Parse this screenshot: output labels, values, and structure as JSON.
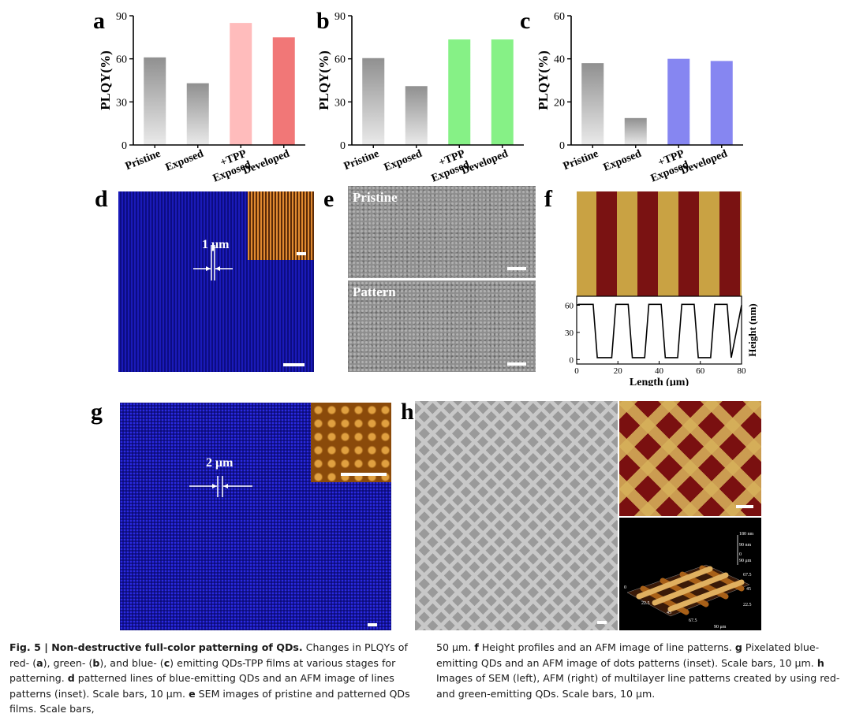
{
  "chart_data": [
    {
      "type": "bar",
      "panel": "a",
      "categories": [
        "Pristine",
        "Exposed",
        "+TPP Exposed",
        "Developed"
      ],
      "values": [
        61,
        43,
        85,
        75
      ],
      "ylabel": "PLQY(%)",
      "ylim": [
        0,
        90
      ],
      "yticks": [
        0,
        30,
        60,
        90
      ],
      "colors": [
        "#8a8a8a",
        "#8a8a8a",
        "#ffb8b8",
        "#f07070"
      ]
    },
    {
      "type": "bar",
      "panel": "b",
      "categories": [
        "Pristine",
        "Exposed",
        "+TPP Exposed",
        "Developed"
      ],
      "values": [
        60.5,
        41,
        73.5,
        73.5
      ],
      "ylabel": "PLQY(%)",
      "ylim": [
        0,
        90
      ],
      "yticks": [
        0,
        30,
        60,
        90
      ],
      "colors": [
        "#8a8a8a",
        "#8a8a8a",
        "#80f080",
        "#80f080"
      ]
    },
    {
      "type": "bar",
      "panel": "c",
      "categories": [
        "Pristine",
        "Exposed",
        "+TPP Exposed",
        "Developed"
      ],
      "values": [
        38,
        12.5,
        40,
        39
      ],
      "ylabel": "PLQY(%)",
      "ylim": [
        0,
        60
      ],
      "yticks": [
        0,
        20,
        40,
        60
      ],
      "colors": [
        "#8a8a8a",
        "#8a8a8a",
        "#8080f0",
        "#8080f0"
      ]
    },
    {
      "type": "line",
      "panel": "f",
      "xlabel": "Length (μm)",
      "ylabel": "Height (nm)",
      "xlim": [
        0,
        80
      ],
      "ylim": [
        -5,
        70
      ],
      "xticks": [
        0,
        20,
        40,
        60,
        80
      ],
      "yticks": [
        0,
        30,
        60
      ],
      "x": [
        0,
        1,
        8,
        10,
        17,
        19,
        25,
        27,
        33,
        35,
        41,
        43,
        49,
        51,
        57,
        59,
        65,
        67,
        73,
        75,
        80
      ],
      "y": [
        60,
        61,
        61,
        2,
        2,
        61,
        61,
        2,
        2,
        61,
        61,
        2,
        2,
        61,
        61,
        2,
        2,
        61,
        61,
        2,
        60
      ]
    }
  ],
  "letters": {
    "a": "a",
    "b": "b",
    "c": "c",
    "d": "d",
    "e": "e",
    "f": "f",
    "g": "g",
    "h": "h"
  },
  "panel_d": {
    "scale_label": "1 μm"
  },
  "panel_e": {
    "top_label": "Pristine",
    "bottom_label": "Pattern"
  },
  "panel_g": {
    "scale_label": "2 μm"
  },
  "panel_h": {
    "afm3d_labels": [
      "180 nm",
      "90 nm",
      "0",
      "90 μm",
      "67.5",
      "45",
      "22.5",
      "0",
      "22.5",
      "45",
      "67.5",
      "90 μm"
    ]
  },
  "colors": {
    "blue_film": "#1212a8",
    "afm_red": "#7a1010",
    "afm_gold": "#c8a040",
    "sem_gray": "#8a8a8a"
  },
  "caption": {
    "fig_label": "Fig. 5 | Non-destructive full-color patterning of QDs.",
    "left_parts": [
      " Changes in PLQYs of red- (",
      "a",
      "), green- (",
      "b",
      "), and blue- (",
      "c",
      ") emitting QDs-TPP films at various stages for patterning. ",
      "d",
      " patterned lines of blue-emitting QDs and an AFM image of lines patterns (inset). Scale bars, 10 μm. ",
      "e",
      " SEM images of pristine and patterned QDs films. Scale bars,"
    ],
    "right_parts": [
      "50 μm. ",
      "f",
      " Height profiles and an AFM image of line patterns. ",
      "g",
      " Pixelated blue-emitting QDs and an AFM image of dots patterns (inset). Scale bars, 10 μm. ",
      "h",
      " Images of SEM (left), AFM (right) of multilayer line patterns created by using red- and green-emitting QDs. Scale bars, 10 μm."
    ]
  }
}
